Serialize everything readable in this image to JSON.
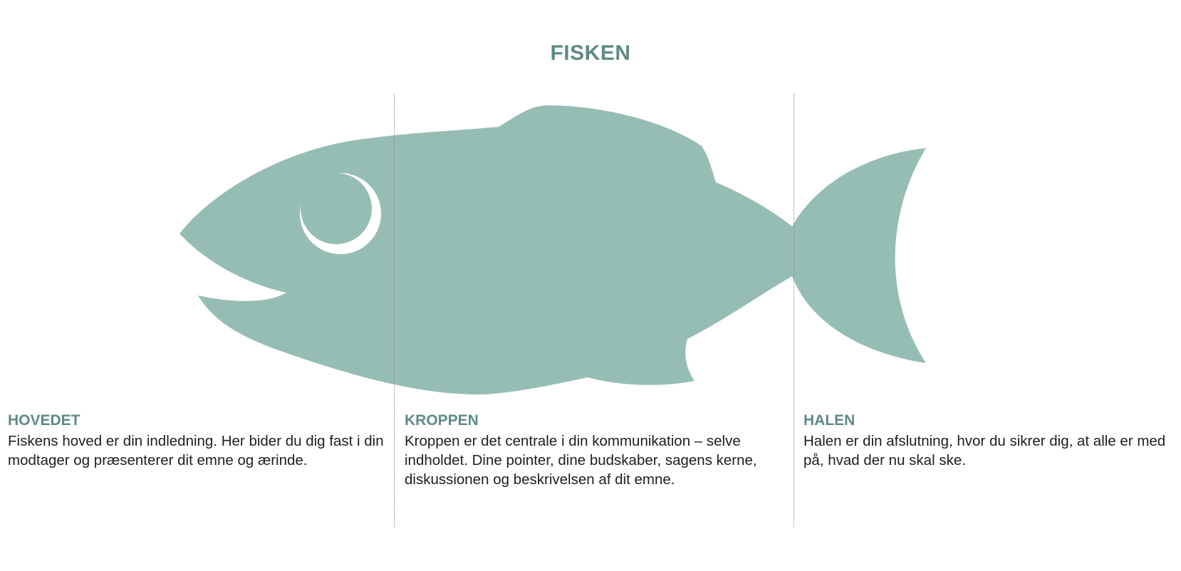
{
  "title": "FISKEN",
  "colors": {
    "fish": "#96bdb4",
    "accent": "#5f8a84",
    "text": "#1e1e1e",
    "divider": "#8a8a8a"
  },
  "sections": [
    {
      "heading": "HOVEDET",
      "text": "Fiskens hoved er din indledning. Her bider du dig fast i din modtager og præsenterer dit emne og ærinde."
    },
    {
      "heading": "KROPPEN",
      "text": "Kroppen er det centrale i din kommunikation – selve indholdet. Dine pointer, dine budskaber, sagens kerne, diskussionen og beskrivelsen af dit emne."
    },
    {
      "heading": "HALEN",
      "text": "Halen er din afslutning, hvor du sikrer dig, at alle er med på, hvad der nu skal ske."
    }
  ]
}
